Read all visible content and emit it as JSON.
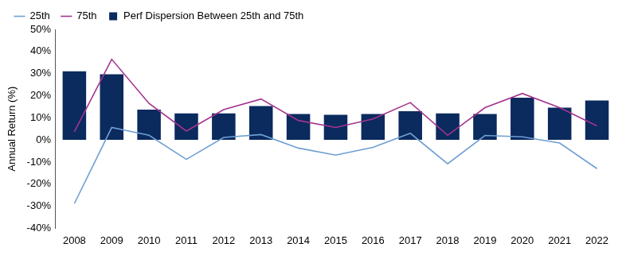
{
  "chart_data": {
    "type": "bar",
    "y_label": "Annual Return (%)",
    "categories": [
      "2008",
      "2009",
      "2010",
      "2011",
      "2012",
      "2013",
      "2014",
      "2015",
      "2016",
      "2017",
      "2018",
      "2019",
      "2020",
      "2021",
      "2022"
    ],
    "series": [
      {
        "name": "Perf Dispersion Between 25th and 75th",
        "type": "bar",
        "color": "#0b2a5e",
        "values": [
          31,
          29.7,
          13.7,
          12,
          12,
          15.3,
          11.7,
          11.4,
          11.7,
          13,
          12,
          11.7,
          19.1,
          14.6,
          17.8
        ]
      },
      {
        "name": "25th",
        "type": "line",
        "color": "#6f9fd3",
        "values": [
          -28.8,
          5.6,
          2.1,
          -8.8,
          1.1,
          2.4,
          -3.7,
          -6.9,
          -3.4,
          3,
          -10.8,
          2,
          1.4,
          -1.4,
          -13
        ]
      },
      {
        "name": "75th",
        "type": "line",
        "color": "#a3348e",
        "values": [
          3.7,
          36.5,
          16.5,
          4,
          13.7,
          18.5,
          8.8,
          5.6,
          9.5,
          16.9,
          2.1,
          14.6,
          21,
          14.6,
          6.3
        ]
      }
    ],
    "ylim": [
      -40,
      50
    ],
    "yticks": [
      {
        "value": -40,
        "label": "-40%"
      },
      {
        "value": -30,
        "label": "-30%"
      },
      {
        "value": -20,
        "label": "-20%"
      },
      {
        "value": -10,
        "label": "-10%"
      },
      {
        "value": 0,
        "label": "0%"
      },
      {
        "value": 10,
        "label": "10%"
      },
      {
        "value": 20,
        "label": "20%"
      },
      {
        "value": 30,
        "label": "30%"
      },
      {
        "value": 40,
        "label": "40%"
      },
      {
        "value": 50,
        "label": "50%"
      }
    ],
    "grid": false,
    "legend": "top-left"
  }
}
